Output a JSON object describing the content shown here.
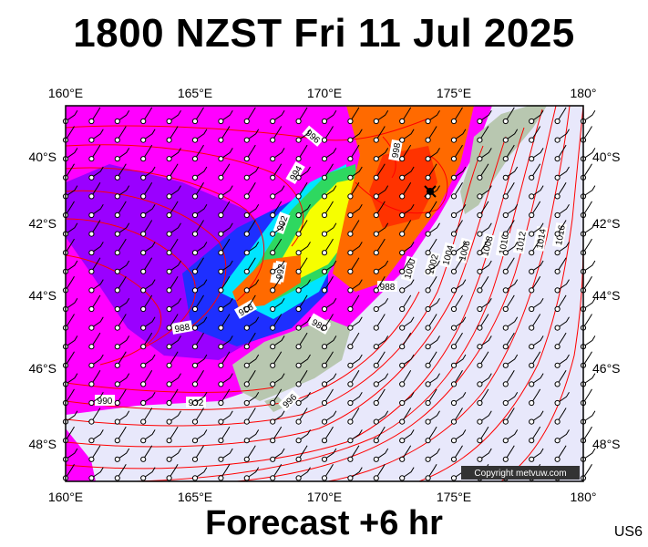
{
  "title": "1800 NZST Fri 11 Jul 2025",
  "footer": "Forecast +6 hr",
  "code": "US6",
  "copyright": "Copyright metvuw.com",
  "lon_labels": [
    "160°E",
    "165°E",
    "170°E",
    "175°E",
    "180°"
  ],
  "lat_labels": [
    "40°S",
    "42°S",
    "44°S",
    "46°S",
    "48°S"
  ],
  "contour_labels": [
    "996",
    "994",
    "992",
    "990",
    "988",
    "988",
    "986",
    "988",
    "998",
    "1000",
    "1002",
    "1004",
    "1006",
    "1008",
    "1010",
    "1012",
    "1014",
    "1016",
    "996",
    "992",
    "990",
    "992",
    "988"
  ],
  "colors": {
    "background": "#e8e8fb",
    "isobar": "#ff0000",
    "land": "#b8c7b0",
    "magenta": "#ff00ff",
    "purple": "#9a00ff",
    "blue": "#1e2fff",
    "cyan": "#00e5ff",
    "green": "#2ed860",
    "yellow": "#f6ff00",
    "orange": "#ff6a00",
    "red": "#ff3300"
  }
}
